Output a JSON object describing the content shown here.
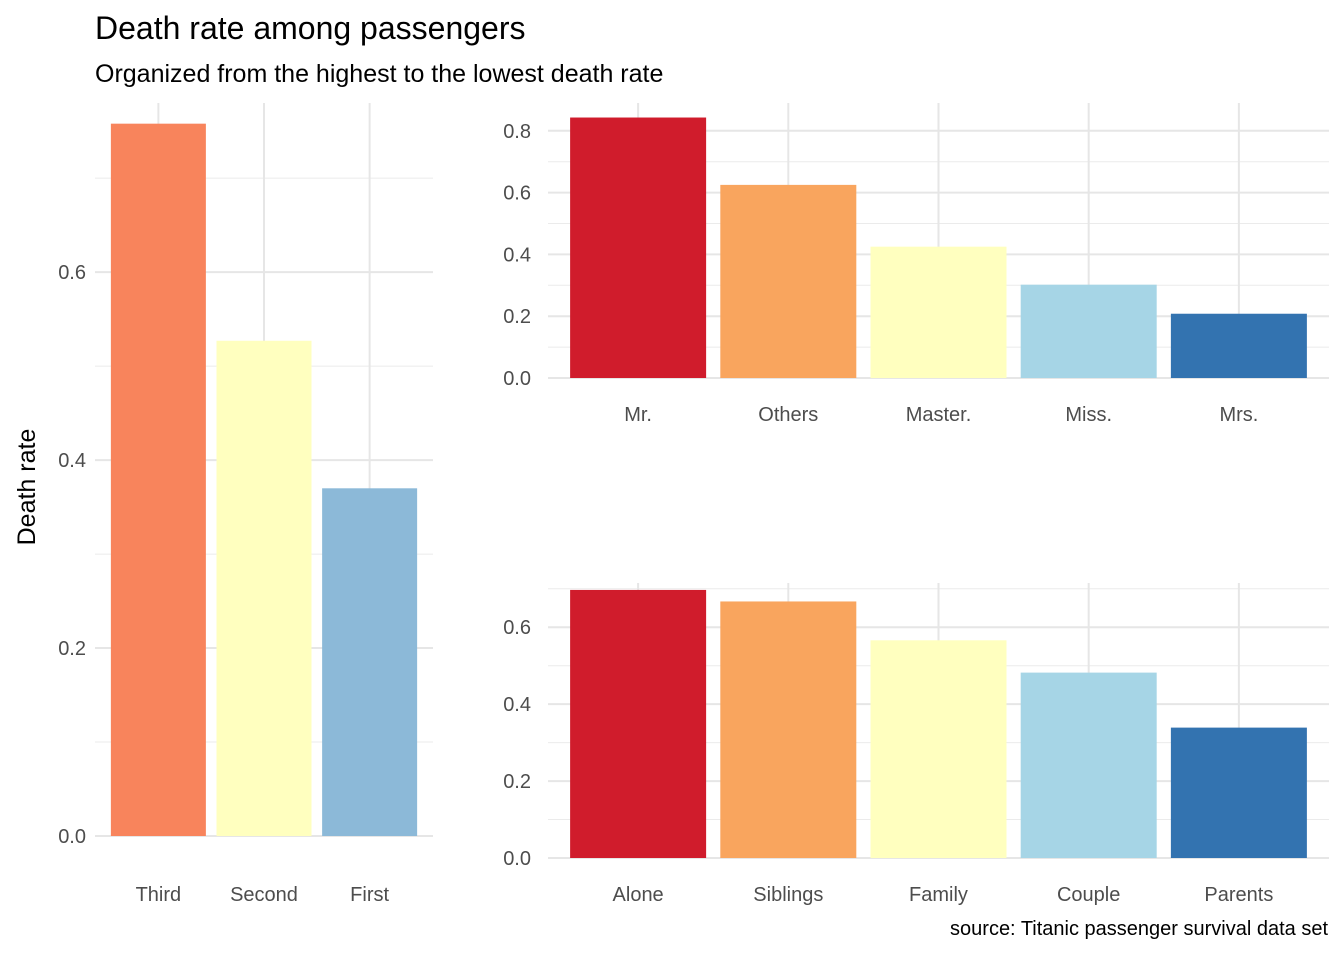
{
  "title": "Death rate among passengers",
  "subtitle": "Organized from the highest to the lowest death rate",
  "caption": "source: Titanic passenger survival data set",
  "ylabel": "Death rate",
  "chart_data": [
    {
      "type": "bar",
      "categories": [
        "Third",
        "Second",
        "First"
      ],
      "values": [
        0.758,
        0.527,
        0.37
      ],
      "colors": [
        "#f8845c",
        "#ffffbf",
        "#8cb9d8"
      ],
      "ylim": [
        0,
        0.78
      ],
      "yticks": [
        0.0,
        0.2,
        0.4,
        0.6
      ],
      "ytick_labels": [
        "0.0",
        "0.2",
        "0.4",
        "0.6"
      ],
      "ylabel": "Death rate",
      "grid": true
    },
    {
      "type": "bar",
      "categories": [
        "Mr.",
        "Others",
        "Master.",
        "Miss.",
        "Mrs."
      ],
      "values": [
        0.843,
        0.625,
        0.425,
        0.302,
        0.208
      ],
      "colors": [
        "#d01c2c",
        "#f9a55e",
        "#ffffbf",
        "#a6d5e6",
        "#3373b0"
      ],
      "ylim": [
        0,
        0.89
      ],
      "yticks": [
        0.0,
        0.2,
        0.4,
        0.6,
        0.8
      ],
      "ytick_labels": [
        "0.0",
        "0.2",
        "0.4",
        "0.6",
        "0.8"
      ],
      "grid": true
    },
    {
      "type": "bar",
      "categories": [
        "Alone",
        "Siblings",
        "Family",
        "Couple",
        "Parents"
      ],
      "values": [
        0.697,
        0.667,
        0.566,
        0.482,
        0.339
      ],
      "colors": [
        "#d01c2c",
        "#f9a55e",
        "#ffffbf",
        "#a6d5e6",
        "#3373b0"
      ],
      "ylim": [
        0,
        0.715
      ],
      "yticks": [
        0.0,
        0.2,
        0.4,
        0.6
      ],
      "ytick_labels": [
        "0.0",
        "0.2",
        "0.4",
        "0.6"
      ],
      "grid": true
    }
  ]
}
